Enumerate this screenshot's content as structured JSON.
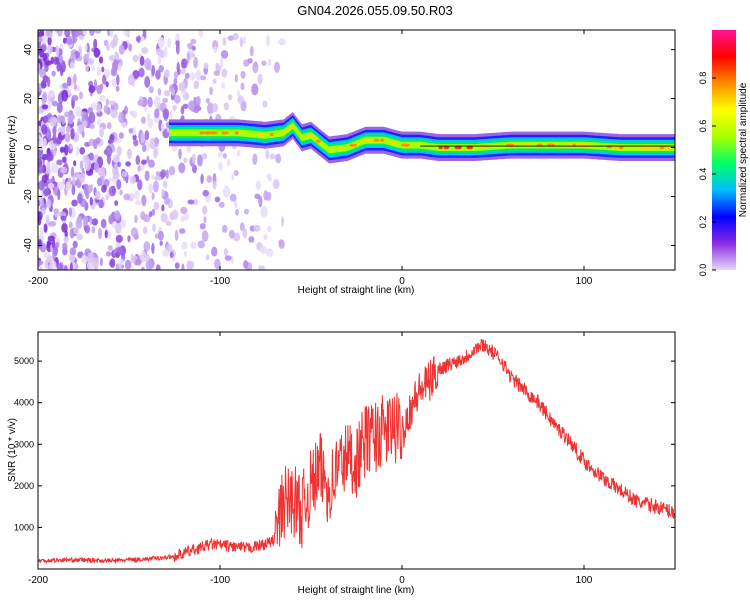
{
  "title": "GN04.2026.055.09.50.R03",
  "chart_data": [
    {
      "type": "heatmap",
      "xlabel": "Height of straight line (km)",
      "ylabel": "Frequency (Hz)",
      "xlim": [
        -200,
        150
      ],
      "ylim": [
        -50,
        48
      ],
      "x_ticks": [
        -200,
        -100,
        0,
        100
      ],
      "y_ticks": [
        -40,
        -20,
        0,
        20,
        40
      ],
      "colorbar": {
        "label": "Normalized spectral amplitude",
        "range": [
          0.0,
          1.0
        ],
        "ticks": [
          0.0,
          0.2,
          0.4,
          0.6,
          0.8
        ],
        "colors": [
          "#e8d8f8",
          "#8a2be2",
          "#0000ff",
          "#00bfff",
          "#00ff66",
          "#aaff00",
          "#ffff00",
          "#ff8c00",
          "#ff0000",
          "#ff1493"
        ]
      },
      "ridge": {
        "description": "dominant frequency ridge of the signal vs height",
        "x": [
          -128,
          -110,
          -90,
          -75,
          -65,
          -60,
          -55,
          -50,
          -45,
          -40,
          -30,
          -20,
          -10,
          0,
          10,
          20,
          40,
          60,
          80,
          100,
          120,
          150
        ],
        "y": [
          6,
          6,
          6,
          5,
          6,
          9,
          4,
          5,
          2,
          -1,
          0,
          3,
          3,
          1,
          1,
          0,
          0,
          1,
          1,
          1,
          0,
          0
        ]
      },
      "noise_region": {
        "x_from": -200,
        "x_to": -75
      }
    },
    {
      "type": "line",
      "xlabel": "Height of straight line (km)",
      "ylabel": "SNR (10 * v/v)",
      "xlim": [
        -200,
        150
      ],
      "ylim": [
        0,
        5700
      ],
      "x_ticks": [
        -200,
        -100,
        0,
        100
      ],
      "y_ticks": [
        1000,
        2000,
        3000,
        4000,
        5000
      ],
      "series": [
        {
          "name": "SNR",
          "color": "#ee3333",
          "x": [
            -200,
            -180,
            -160,
            -140,
            -125,
            -115,
            -105,
            -95,
            -85,
            -75,
            -70,
            -65,
            -60,
            -55,
            -50,
            -45,
            -40,
            -35,
            -30,
            -25,
            -20,
            -15,
            -10,
            -5,
            0,
            5,
            10,
            15,
            20,
            25,
            30,
            35,
            40,
            45,
            50,
            55,
            60,
            65,
            70,
            75,
            80,
            85,
            90,
            95,
            100,
            110,
            120,
            130,
            140,
            150
          ],
          "y": [
            200,
            220,
            200,
            240,
            300,
            450,
            600,
            550,
            500,
            600,
            700,
            1600,
            1700,
            1400,
            2000,
            2400,
            1900,
            2500,
            2700,
            2600,
            3100,
            3200,
            3300,
            3400,
            3300,
            3900,
            4300,
            4500,
            4800,
            4900,
            5000,
            5100,
            5300,
            5400,
            5200,
            5000,
            4600,
            4400,
            4200,
            4000,
            3700,
            3400,
            3200,
            2900,
            2600,
            2200,
            1900,
            1600,
            1500,
            1350
          ]
        }
      ]
    }
  ]
}
